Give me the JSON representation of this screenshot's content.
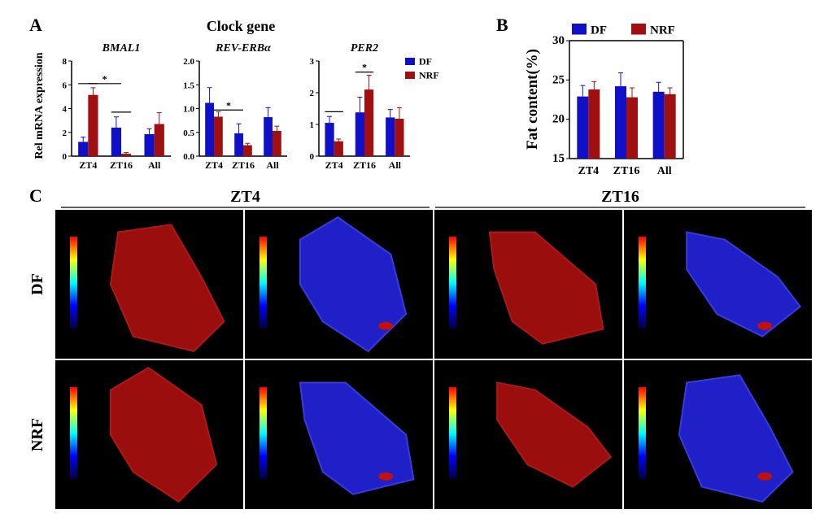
{
  "panel_labels": {
    "a": "A",
    "b": "B",
    "c": "C"
  },
  "panel_a_title": "Clock gene",
  "colors": {
    "DF": "#1010c8",
    "NRF": "#a01010"
  },
  "legend": [
    "DF",
    "NRF"
  ],
  "chart_data": [
    {
      "type": "bar",
      "title": "BMAL1",
      "ylabel": "Rel mRNA expression",
      "categories": [
        "ZT4",
        "ZT16",
        "All"
      ],
      "ylim": [
        0,
        8
      ],
      "yticks": [
        "0",
        "2",
        "4",
        "6",
        "8"
      ],
      "series": [
        {
          "name": "DF",
          "values": [
            1.2,
            2.4,
            1.85
          ],
          "errors": [
            0.4,
            0.9,
            0.45
          ]
        },
        {
          "name": "NRF",
          "values": [
            5.15,
            0.2,
            2.7
          ],
          "errors": [
            0.6,
            0.1,
            0.95
          ]
        }
      ],
      "annotations": [
        {
          "from": [
            0,
            0
          ],
          "to": [
            0,
            1
          ],
          "y": 6.1,
          "label": ""
        },
        {
          "from": [
            0,
            1
          ],
          "to": [
            1,
            0
          ],
          "y": 6.1,
          "label": "*"
        },
        {
          "from": [
            1,
            0
          ],
          "to": [
            1,
            1
          ],
          "y": 3.7,
          "label": ""
        }
      ]
    },
    {
      "type": "bar",
      "title": "REV-ERBα",
      "ylabel": "",
      "categories": [
        "ZT4",
        "ZT16",
        "All"
      ],
      "ylim": [
        0,
        2
      ],
      "yticks": [
        "0.0",
        "0.5",
        "1.0",
        "1.5",
        "2.0"
      ],
      "series": [
        {
          "name": "DF",
          "values": [
            1.12,
            0.48,
            0.82
          ],
          "errors": [
            0.32,
            0.2,
            0.2
          ]
        },
        {
          "name": "NRF",
          "values": [
            0.83,
            0.23,
            0.53
          ],
          "errors": [
            0.1,
            0.04,
            0.1
          ]
        }
      ],
      "annotations": [
        {
          "from": [
            0,
            1
          ],
          "to": [
            1,
            0
          ],
          "y": 0.97,
          "label": "*"
        }
      ]
    },
    {
      "type": "bar",
      "title": "PER2",
      "ylabel": "",
      "categories": [
        "ZT4",
        "ZT16",
        "All"
      ],
      "ylim": [
        0,
        3
      ],
      "yticks": [
        "0",
        "1",
        "2",
        "3"
      ],
      "series": [
        {
          "name": "DF",
          "values": [
            1.05,
            1.38,
            1.22
          ],
          "errors": [
            0.2,
            0.48,
            0.25
          ]
        },
        {
          "name": "NRF",
          "values": [
            0.47,
            2.1,
            1.18
          ],
          "errors": [
            0.07,
            0.45,
            0.35
          ]
        }
      ],
      "annotations": [
        {
          "from": [
            0,
            0
          ],
          "to": [
            0,
            1
          ],
          "y": 1.4,
          "label": ""
        },
        {
          "from": [
            1,
            0
          ],
          "to": [
            1,
            1
          ],
          "y": 2.65,
          "label": "*"
        }
      ]
    },
    {
      "type": "bar",
      "title": "",
      "ylabel": "Fat content(%)",
      "categories": [
        "ZT4",
        "ZT16",
        "All"
      ],
      "ylim": [
        15,
        30
      ],
      "yticks": [
        "15",
        "20",
        "25",
        "30"
      ],
      "series": [
        {
          "name": "DF",
          "values": [
            22.9,
            24.2,
            23.5
          ],
          "errors": [
            1.4,
            1.7,
            1.2
          ]
        },
        {
          "name": "NRF",
          "values": [
            23.8,
            22.8,
            23.2
          ],
          "errors": [
            1.0,
            1.2,
            0.8
          ]
        }
      ],
      "annotations": []
    }
  ],
  "panel_c": {
    "columns": [
      "ZT4",
      "ZT16"
    ],
    "rows": [
      "DF",
      "NRF"
    ],
    "tiles": [
      [
        "red",
        "blue",
        "red",
        "blue"
      ],
      [
        "red",
        "blue",
        "red",
        "blue"
      ]
    ]
  }
}
